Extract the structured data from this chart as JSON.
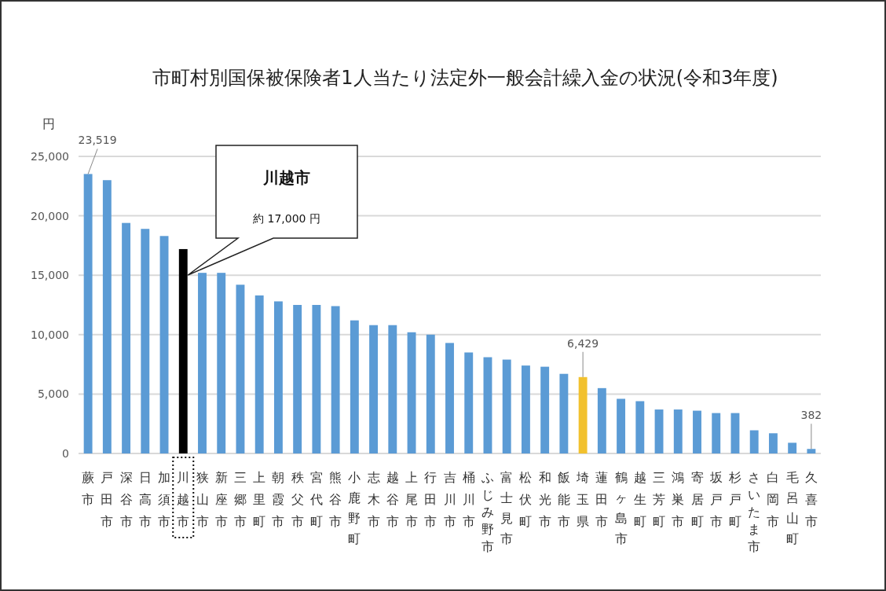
{
  "chart_data": {
    "type": "bar",
    "title": "市町村別国保被保険者1人当たり法定外一般会計繰入金の状況(令和3年度)",
    "ylabel": "円",
    "categories": [
      "蕨市",
      "戸田市",
      "深谷市",
      "日高市",
      "加須市",
      "川越市",
      "狭山市",
      "新座市",
      "三郷市",
      "上里町",
      "朝霞市",
      "秩父市",
      "宮代町",
      "熊谷市",
      "小鹿野町",
      "志木市",
      "越谷市",
      "上尾市",
      "行田市",
      "吉川市",
      "桶川市",
      "ふじみ野市",
      "富士見市",
      "松伏町",
      "和光市",
      "飯能市",
      "埼玉県",
      "蓮田市",
      "鶴ヶ島市",
      "越生町",
      "三芳町",
      "鴻巣市",
      "寄居町",
      "坂戸市",
      "杉戸町",
      "さいたま市",
      "白岡市",
      "毛呂山町",
      "久喜市"
    ],
    "values": [
      23519,
      23000,
      19400,
      18900,
      18300,
      17200,
      15200,
      15200,
      14200,
      13300,
      12800,
      12500,
      12500,
      12400,
      11200,
      10800,
      10800,
      10200,
      10000,
      9300,
      8500,
      8100,
      7900,
      7400,
      7300,
      6700,
      6429,
      5500,
      4600,
      4400,
      3700,
      3700,
      3600,
      3400,
      3400,
      1950,
      1700,
      900,
      382
    ],
    "colors": [
      "#5b9bd5",
      "#5b9bd5",
      "#5b9bd5",
      "#5b9bd5",
      "#5b9bd5",
      "#000000",
      "#5b9bd5",
      "#5b9bd5",
      "#5b9bd5",
      "#5b9bd5",
      "#5b9bd5",
      "#5b9bd5",
      "#5b9bd5",
      "#5b9bd5",
      "#5b9bd5",
      "#5b9bd5",
      "#5b9bd5",
      "#5b9bd5",
      "#5b9bd5",
      "#5b9bd5",
      "#5b9bd5",
      "#5b9bd5",
      "#5b9bd5",
      "#5b9bd5",
      "#5b9bd5",
      "#5b9bd5",
      "#f2c12e",
      "#5b9bd5",
      "#5b9bd5",
      "#5b9bd5",
      "#5b9bd5",
      "#5b9bd5",
      "#5b9bd5",
      "#5b9bd5",
      "#5b9bd5",
      "#5b9bd5",
      "#5b9bd5",
      "#5b9bd5",
      "#5b9bd5"
    ],
    "value_labels": [
      "23,519",
      null,
      null,
      null,
      null,
      null,
      null,
      null,
      null,
      null,
      null,
      null,
      null,
      null,
      null,
      null,
      null,
      null,
      null,
      null,
      null,
      null,
      null,
      null,
      null,
      null,
      "6,429",
      null,
      null,
      null,
      null,
      null,
      null,
      null,
      null,
      null,
      null,
      null,
      "382"
    ],
    "ylim": [
      0,
      25000
    ],
    "yticks": [
      0,
      {
        "value": 5000,
        "label": "5,000"
      },
      {
        "value": 10000,
        "label": "10,000"
      },
      {
        "value": 15000,
        "label": "15,000"
      },
      {
        "value": 20000,
        "label": "20,000"
      },
      {
        "value": 25000,
        "label": "25,000"
      }
    ],
    "grid": "y",
    "annotations": [
      "川越市",
      "約 17,000 円"
    ]
  }
}
